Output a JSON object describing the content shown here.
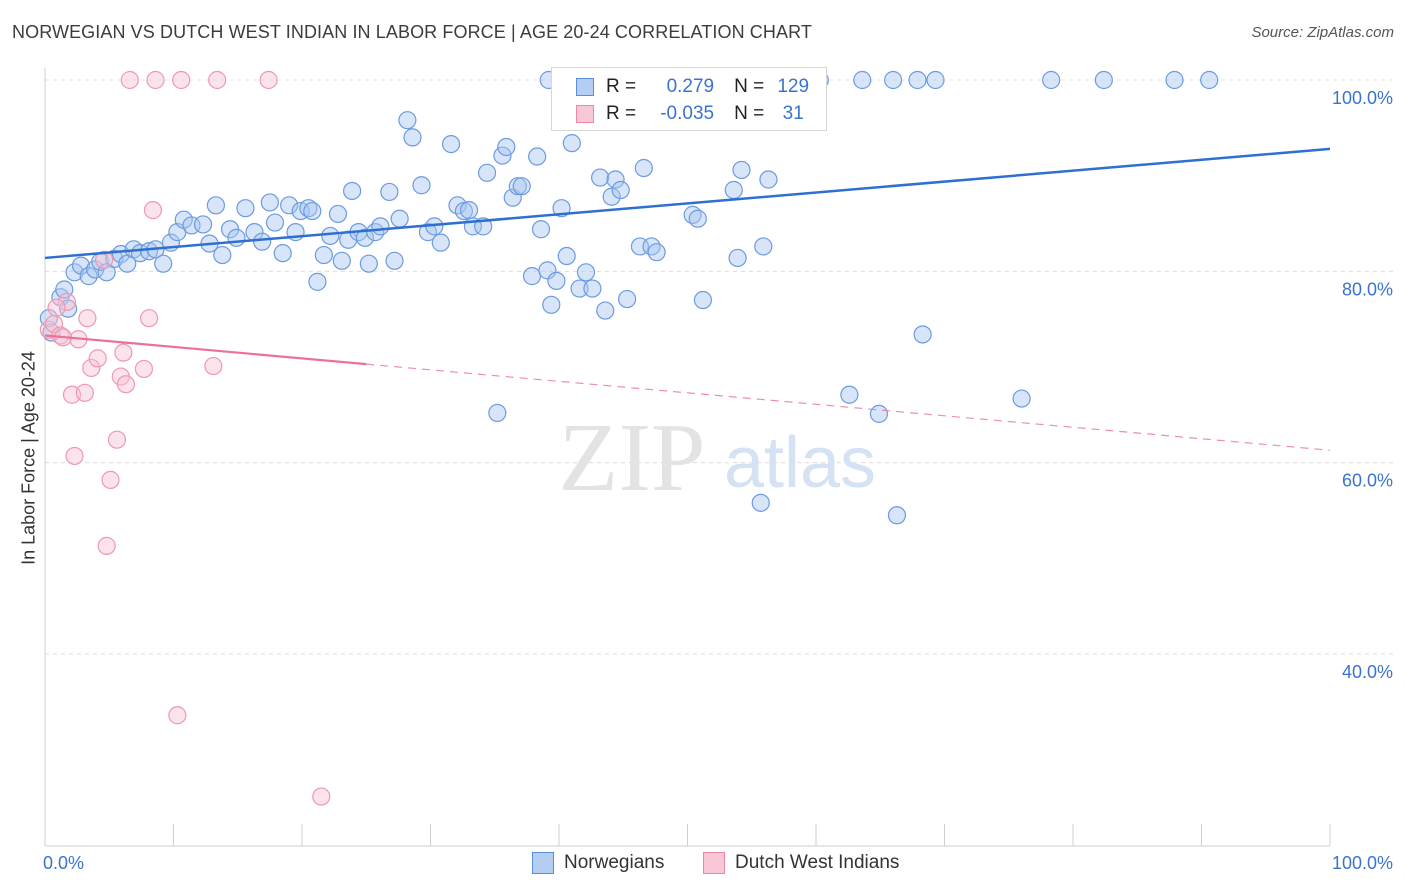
{
  "title": "NORWEGIAN VS DUTCH WEST INDIAN IN LABOR FORCE | AGE 20-24 CORRELATION CHART",
  "source": "Source: ZipAtlas.com",
  "watermark": {
    "zip": "ZIP",
    "atlas": "atlas"
  },
  "legend": {
    "series": [
      {
        "r_label": "R =",
        "r_value": "0.279",
        "n_label": "N =",
        "n_value": "129"
      },
      {
        "r_label": "R =",
        "r_value": "-0.035",
        "n_label": "N =",
        "n_value": "31"
      }
    ]
  },
  "bottom_legend": {
    "norwegians": "Norwegians",
    "dutch": "Dutch West Indians"
  },
  "chart_data": {
    "type": "scatter",
    "title": "NORWEGIAN VS DUTCH WEST INDIAN IN LABOR FORCE | AGE 20-24 CORRELATION CHART",
    "xlabel": "",
    "ylabel": "In Labor Force | Age 20-24",
    "xlim": [
      0,
      100
    ],
    "ylim": [
      20,
      101
    ],
    "x_tick_labels": [
      "0.0%",
      "100.0%"
    ],
    "y_ticks": [
      40,
      60,
      80,
      100
    ],
    "y_tick_labels": [
      "40.0%",
      "60.0%",
      "80.0%",
      "100.0%"
    ],
    "colors": {
      "norwegians": "#6b9be0",
      "dutch": "#ef97b3",
      "blue_line": "#2f6fcf",
      "pink_line": "#e8729a",
      "axis_label": "#3a73cf"
    },
    "series": [
      {
        "name": "Norwegians",
        "r": 0.279,
        "n": 129,
        "trend": {
          "x": [
            0,
            100
          ],
          "y": [
            81.4,
            92.8
          ]
        },
        "points": [
          [
            0.3,
            75.1
          ],
          [
            0.5,
            73.6
          ],
          [
            1.2,
            77.3
          ],
          [
            1.5,
            78.1
          ],
          [
            1.8,
            76.1
          ],
          [
            2.3,
            79.9
          ],
          [
            2.8,
            80.6
          ],
          [
            3.4,
            79.5
          ],
          [
            3.9,
            80.2
          ],
          [
            4.3,
            81.0
          ],
          [
            4.8,
            79.9
          ],
          [
            5.4,
            81.3
          ],
          [
            5.9,
            81.8
          ],
          [
            6.4,
            80.8
          ],
          [
            6.9,
            82.3
          ],
          [
            7.4,
            81.9
          ],
          [
            8.1,
            82.1
          ],
          [
            8.6,
            82.3
          ],
          [
            9.2,
            80.8
          ],
          [
            9.8,
            83.0
          ],
          [
            10.3,
            84.1
          ],
          [
            10.8,
            85.4
          ],
          [
            11.4,
            84.8
          ],
          [
            12.3,
            84.9
          ],
          [
            12.8,
            82.9
          ],
          [
            13.3,
            86.9
          ],
          [
            13.8,
            81.7
          ],
          [
            14.4,
            84.4
          ],
          [
            14.9,
            83.5
          ],
          [
            15.6,
            86.6
          ],
          [
            16.3,
            84.1
          ],
          [
            16.9,
            83.1
          ],
          [
            17.5,
            87.2
          ],
          [
            17.9,
            85.1
          ],
          [
            18.5,
            81.9
          ],
          [
            19.0,
            86.9
          ],
          [
            19.5,
            84.1
          ],
          [
            19.9,
            86.3
          ],
          [
            20.5,
            86.6
          ],
          [
            20.8,
            86.3
          ],
          [
            21.2,
            78.9
          ],
          [
            21.7,
            81.7
          ],
          [
            22.2,
            83.7
          ],
          [
            22.8,
            86.0
          ],
          [
            23.1,
            81.1
          ],
          [
            23.6,
            83.3
          ],
          [
            23.9,
            88.4
          ],
          [
            24.4,
            84.1
          ],
          [
            24.9,
            83.5
          ],
          [
            25.2,
            80.8
          ],
          [
            25.7,
            84.1
          ],
          [
            26.1,
            84.7
          ],
          [
            26.8,
            88.3
          ],
          [
            27.2,
            81.1
          ],
          [
            27.6,
            85.5
          ],
          [
            28.2,
            95.8
          ],
          [
            28.6,
            94.0
          ],
          [
            29.3,
            89.0
          ],
          [
            29.8,
            84.1
          ],
          [
            30.3,
            84.7
          ],
          [
            30.8,
            83.0
          ],
          [
            31.6,
            93.3
          ],
          [
            32.1,
            86.9
          ],
          [
            32.6,
            86.3
          ],
          [
            33.0,
            86.4
          ],
          [
            33.3,
            84.7
          ],
          [
            34.1,
            84.7
          ],
          [
            34.4,
            90.3
          ],
          [
            35.2,
            65.2
          ],
          [
            35.6,
            92.1
          ],
          [
            35.9,
            93.0
          ],
          [
            36.4,
            87.7
          ],
          [
            36.8,
            88.9
          ],
          [
            37.1,
            88.9
          ],
          [
            37.9,
            79.5
          ],
          [
            38.3,
            92.0
          ],
          [
            38.6,
            84.4
          ],
          [
            39.1,
            80.1
          ],
          [
            39.4,
            76.5
          ],
          [
            39.8,
            79.0
          ],
          [
            40.2,
            86.6
          ],
          [
            40.6,
            81.6
          ],
          [
            41.0,
            93.4
          ],
          [
            41.6,
            78.2
          ],
          [
            42.1,
            79.9
          ],
          [
            42.6,
            78.2
          ],
          [
            43.2,
            89.8
          ],
          [
            43.6,
            75.9
          ],
          [
            44.1,
            87.8
          ],
          [
            44.4,
            89.6
          ],
          [
            44.8,
            88.5
          ],
          [
            45.3,
            77.1
          ],
          [
            46.3,
            82.6
          ],
          [
            46.6,
            90.8
          ],
          [
            47.2,
            82.6
          ],
          [
            47.6,
            82.0
          ],
          [
            48.3,
            100.0
          ],
          [
            50.4,
            85.9
          ],
          [
            50.8,
            85.5
          ],
          [
            51.2,
            77.0
          ],
          [
            53.6,
            88.5
          ],
          [
            53.9,
            81.4
          ],
          [
            54.2,
            90.6
          ],
          [
            55.7,
            55.8
          ],
          [
            55.9,
            82.6
          ],
          [
            56.3,
            89.6
          ],
          [
            56.7,
            100.0
          ],
          [
            58.0,
            100.0
          ],
          [
            60.3,
            100.0
          ],
          [
            62.6,
            67.1
          ],
          [
            63.6,
            100.0
          ],
          [
            64.9,
            65.1
          ],
          [
            66.0,
            100.0
          ],
          [
            66.3,
            54.5
          ],
          [
            67.9,
            100.0
          ],
          [
            68.3,
            73.4
          ],
          [
            69.3,
            100.0
          ],
          [
            76.0,
            66.7
          ],
          [
            78.3,
            100.0
          ],
          [
            82.4,
            100.0
          ],
          [
            87.9,
            100.0
          ],
          [
            90.6,
            100.0
          ],
          [
            47.8,
            100.0
          ],
          [
            51.6,
            100.0
          ],
          [
            53.3,
            100.0
          ],
          [
            55.1,
            100.0
          ],
          [
            44.8,
            100.0
          ],
          [
            41.8,
            100.0
          ],
          [
            39.2,
            100.0
          ]
        ]
      },
      {
        "name": "Dutch West Indians",
        "r": -0.035,
        "n": 31,
        "trend": {
          "x": [
            0,
            100
          ],
          "y": [
            73.3,
            61.3
          ],
          "solid_until_x": 25
        },
        "points": [
          [
            0.3,
            73.9
          ],
          [
            0.7,
            74.5
          ],
          [
            1.2,
            73.3
          ],
          [
            1.7,
            76.8
          ],
          [
            2.1,
            67.1
          ],
          [
            2.3,
            60.7
          ],
          [
            2.6,
            72.9
          ],
          [
            3.1,
            67.3
          ],
          [
            3.3,
            75.1
          ],
          [
            3.6,
            69.9
          ],
          [
            4.1,
            70.9
          ],
          [
            4.6,
            81.2
          ],
          [
            4.8,
            51.3
          ],
          [
            5.1,
            58.2
          ],
          [
            5.6,
            62.4
          ],
          [
            5.9,
            69.0
          ],
          [
            6.1,
            71.5
          ],
          [
            6.3,
            68.2
          ],
          [
            6.6,
            100.0
          ],
          [
            7.7,
            69.8
          ],
          [
            8.1,
            75.1
          ],
          [
            8.4,
            86.4
          ],
          [
            8.6,
            100.0
          ],
          [
            10.3,
            33.6
          ],
          [
            10.6,
            100.0
          ],
          [
            13.1,
            70.1
          ],
          [
            13.4,
            100.0
          ],
          [
            17.4,
            100.0
          ],
          [
            21.5,
            25.1
          ],
          [
            1.4,
            73.1
          ],
          [
            0.9,
            76.2
          ]
        ]
      }
    ]
  }
}
